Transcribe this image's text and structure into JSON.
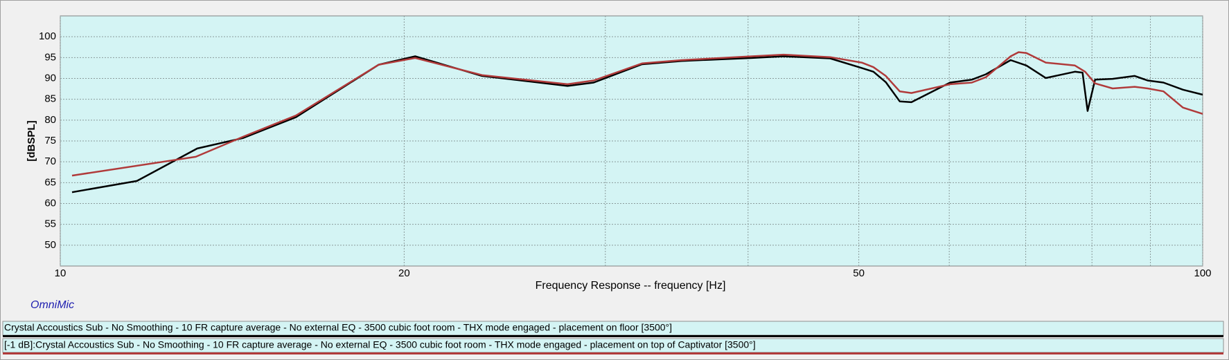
{
  "chart_data": {
    "type": "line",
    "xlabel": "Frequency Response -- frequency [Hz]",
    "ylabel": "[dBSPL]",
    "annotation": "OmniMic",
    "xscale": "log",
    "xlim": [
      10,
      100
    ],
    "ylim": [
      45,
      105
    ],
    "xticks": [
      10,
      20,
      50,
      100
    ],
    "x_grid": [
      30,
      40,
      60,
      70,
      80,
      90
    ],
    "yticks": [
      50,
      55,
      60,
      65,
      70,
      75,
      80,
      85,
      90,
      95,
      100
    ],
    "grid": true,
    "series": [
      {
        "name": "Crystal Accoustics Sub - No Smoothing - 10 FR capture average - No external EQ - 3500 cubic foot room - THX mode engaged - placement on floor [3500°]",
        "color": "#000000",
        "x": [
          10.24,
          11.67,
          13.18,
          14.45,
          16.08,
          19.0,
          20.45,
          23.4,
          27.8,
          29.3,
          32.3,
          35.0,
          40.3,
          42.96,
          47.2,
          50.3,
          51.5,
          52.8,
          54.3,
          55.6,
          60.1,
          62.8,
          64.6,
          67.9,
          70.1,
          72.9,
          77.3,
          78.5,
          79.3,
          80.5,
          83.4,
          87.2,
          89.5,
          92.4,
          96.1,
          100
        ],
        "values": [
          62.7,
          65.4,
          73.2,
          75.7,
          80.7,
          93.3,
          95.3,
          90.6,
          88.2,
          89.0,
          93.4,
          94.2,
          94.9,
          95.3,
          94.8,
          92.5,
          91.6,
          89.1,
          84.5,
          84.3,
          89.0,
          89.7,
          91.0,
          94.4,
          93.1,
          90.1,
          91.6,
          91.4,
          82.2,
          89.7,
          89.9,
          90.6,
          89.5,
          89.0,
          87.3,
          86.1
        ]
      },
      {
        "name": "[-1 dB]:Crystal Accoustics Sub - No Smoothing - 10 FR capture average - No external EQ - 3500 cubic foot room - THX mode engaged - placement on top of Captivator [3500°]",
        "color": "#b03a3a",
        "x": [
          10.24,
          13.14,
          14.45,
          16.08,
          19.0,
          20.45,
          23.4,
          27.8,
          29.3,
          32.3,
          35.0,
          40.3,
          42.96,
          47.2,
          50.3,
          51.5,
          52.8,
          54.3,
          55.6,
          60.1,
          62.8,
          64.6,
          67.9,
          69.0,
          70.1,
          72.9,
          77.3,
          78.9,
          80.5,
          83.4,
          87.2,
          89.5,
          92.4,
          96.1,
          100
        ],
        "values": [
          66.7,
          71.2,
          76.0,
          81.1,
          93.3,
          94.9,
          90.8,
          88.6,
          89.5,
          93.6,
          94.4,
          95.3,
          95.7,
          95.1,
          93.8,
          92.7,
          90.6,
          86.9,
          86.5,
          88.6,
          89.0,
          90.3,
          95.3,
          96.3,
          96.1,
          93.8,
          93.1,
          91.6,
          88.8,
          87.6,
          88.0,
          87.6,
          86.9,
          83.0,
          81.5
        ]
      }
    ]
  }
}
